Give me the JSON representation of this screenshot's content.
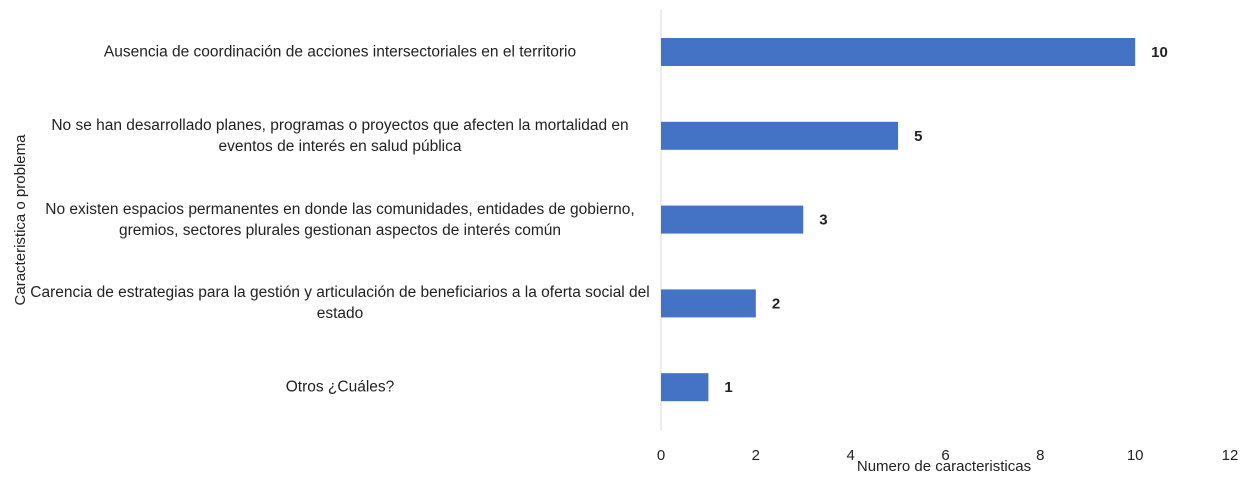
{
  "chart_data": {
    "type": "barh",
    "categories": [
      "Ausencia de coordinación de acciones intersectoriales en el territorio",
      "No se han desarrollado planes, programas o proyectos que afecten la mortalidad en eventos de interés en salud pública",
      "No existen espacios permanentes en donde las comunidades, entidades de gobierno, gremios, sectores plurales gestionan aspectos de interés común",
      "Carencia de estrategias para la gestión y articulación de beneficiarios a la oferta social del estado",
      "Otros ¿Cuáles?"
    ],
    "values": [
      10,
      5,
      3,
      2,
      1
    ],
    "color": "#4472c4",
    "xlim": [
      0,
      12
    ],
    "xticks": [
      0,
      2,
      4,
      6,
      8,
      10,
      12
    ],
    "xlabel": "Numero de caracteristicas",
    "ylabel": "Caracteristica o problema"
  }
}
